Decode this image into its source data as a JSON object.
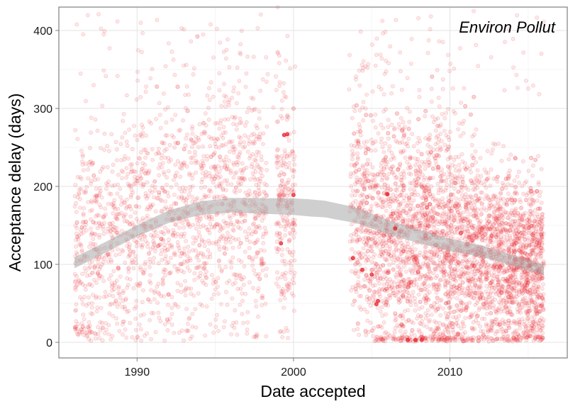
{
  "chart_data": {
    "type": "scatter",
    "title": "",
    "annotation": "Environ Pollut",
    "xlabel": "Date accepted",
    "ylabel": "Acceptance delay (days)",
    "xlim": [
      1985,
      2017.5
    ],
    "ylim": [
      -20,
      430
    ],
    "x_ticks": [
      1990,
      2000,
      2010
    ],
    "y_ticks": [
      0,
      100,
      200,
      300,
      400
    ],
    "grid": true,
    "legend": "none",
    "point_color": "#e8202a",
    "smooth_color": "#a8a8a8",
    "smooth_trend": {
      "x": [
        1986,
        1988,
        1990,
        1992,
        1994,
        1996,
        1998,
        2000,
        2002,
        2004,
        2006,
        2008,
        2010,
        2012,
        2014,
        2016
      ],
      "y": [
        102,
        122,
        143,
        161,
        172,
        176,
        175,
        174,
        171,
        163,
        148,
        136,
        125,
        117,
        105,
        93
      ]
    },
    "highlighted_points": {
      "x": [
        1999.2,
        1999.4,
        1999.6,
        2000.0,
        2003.8,
        2004.4,
        2005.0,
        2005.3,
        2005.4,
        2006.0,
        2006.5,
        2007.3,
        2007.8,
        2008.2
      ],
      "y": [
        127,
        266,
        267,
        189,
        108,
        93,
        87,
        49,
        53,
        190,
        146,
        3,
        3,
        3
      ]
    }
  }
}
